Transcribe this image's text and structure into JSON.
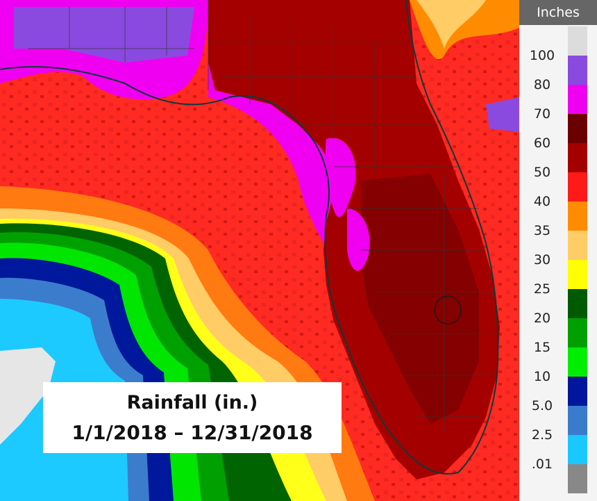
{
  "legend": {
    "title": "Inches",
    "labels": [
      "100",
      "80",
      "70",
      "60",
      "50",
      "40",
      "35",
      "30",
      "25",
      "20",
      "15",
      "10",
      "5.0",
      "2.5",
      ".01"
    ],
    "colors": [
      "#dcdcdc",
      "#8a4ae0",
      "#f000f0",
      "#6b0000",
      "#a50000",
      "#ff1a1a",
      "#ff8c00",
      "#ffcc66",
      "#ffff00",
      "#005a00",
      "#009f00",
      "#00ee00",
      "#00169c",
      "#3a7ccc",
      "#18c8ff",
      "#888888"
    ]
  },
  "caption": {
    "line1": "Rainfall (in.)",
    "line2": "1/1/2018 – 12/31/2018"
  }
}
